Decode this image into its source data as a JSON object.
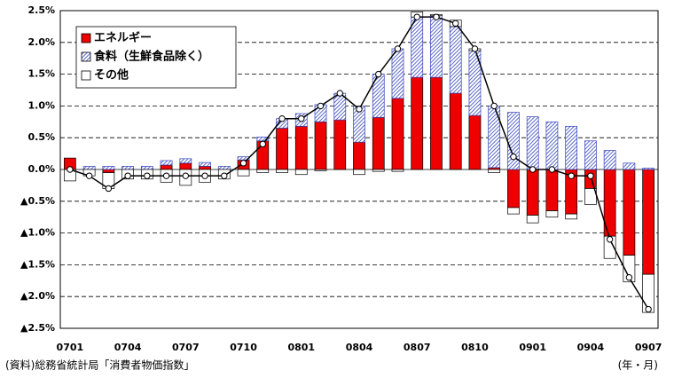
{
  "chart_data": {
    "type": "bar",
    "stacked": true,
    "categories": [
      "0701",
      null,
      null,
      "0704",
      null,
      null,
      "0707",
      null,
      null,
      "0710",
      null,
      null,
      "0801",
      null,
      null,
      "0804",
      null,
      null,
      "0807",
      null,
      null,
      "0810",
      null,
      null,
      "0901",
      null,
      null,
      "0904",
      null,
      null,
      "0907"
    ],
    "series": [
      {
        "name": "エネルギー",
        "color": "#ee0000",
        "values": [
          0.18,
          0,
          -0.05,
          0,
          0,
          0.07,
          0.1,
          0.05,
          0,
          0.15,
          0.45,
          0.65,
          0.68,
          0.75,
          0.78,
          0.43,
          0.82,
          1.12,
          1.45,
          1.45,
          1.2,
          0.85,
          0.03,
          -0.6,
          -0.72,
          -0.65,
          -0.7,
          -0.3,
          -1.05,
          -1.35,
          -1.65
        ]
      },
      {
        "name": "食料（生鮮食品除く）",
        "color": "#3344bb",
        "pattern": "hatch",
        "values": [
          0,
          0.05,
          0.05,
          0.05,
          0.05,
          0.07,
          0.07,
          0.06,
          0.05,
          0.05,
          0.06,
          0.15,
          0.2,
          0.27,
          0.42,
          0.57,
          0.68,
          0.78,
          0.95,
          0.97,
          1.05,
          1.02,
          0.97,
          0.9,
          0.83,
          0.75,
          0.68,
          0.45,
          0.3,
          0.1,
          0.02
        ]
      },
      {
        "name": "その他",
        "color": "#ffffff",
        "values": [
          -0.18,
          -0.1,
          -0.25,
          -0.15,
          -0.15,
          -0.2,
          -0.25,
          -0.2,
          -0.15,
          -0.1,
          -0.05,
          -0.05,
          -0.08,
          -0.02,
          0,
          -0.08,
          -0.03,
          -0.03,
          0.08,
          0.02,
          0.1,
          0.03,
          -0.05,
          -0.1,
          -0.12,
          -0.1,
          -0.08,
          -0.25,
          -0.35,
          -0.42,
          -0.6
        ]
      },
      {
        "type": "line",
        "color": "#000000",
        "values": [
          0,
          -0.1,
          -0.3,
          -0.1,
          -0.1,
          -0.1,
          -0.1,
          -0.1,
          -0.1,
          0.1,
          0.4,
          0.8,
          0.8,
          1.0,
          1.2,
          0.95,
          1.5,
          1.9,
          2.4,
          2.4,
          2.3,
          1.9,
          1.0,
          0.2,
          0,
          0,
          -0.1,
          -0.1,
          -1.1,
          -1.7,
          -2.2
        ]
      }
    ],
    "ylim": [
      -2.5,
      2.5
    ],
    "yticks": [
      {
        "value": 2.5,
        "label": "2.5%"
      },
      {
        "value": 2.0,
        "label": "2.0%"
      },
      {
        "value": 1.5,
        "label": "1.5%"
      },
      {
        "value": 1.0,
        "label": "1.0%"
      },
      {
        "value": 0.5,
        "label": "0.5%"
      },
      {
        "value": 0,
        "label": "0.0%"
      },
      {
        "value": -0.5,
        "label": "▲0.5%"
      },
      {
        "value": -1.0,
        "label": "▲1.0%"
      },
      {
        "value": -1.5,
        "label": "▲1.5%"
      },
      {
        "value": -2.0,
        "label": "▲2.0%"
      },
      {
        "value": -2.5,
        "label": "▲2.5%"
      }
    ],
    "grid": true,
    "legend": "upper left",
    "source": "(資料)総務省統計局「消費者物価指数」",
    "x_label": "(年・月)"
  }
}
